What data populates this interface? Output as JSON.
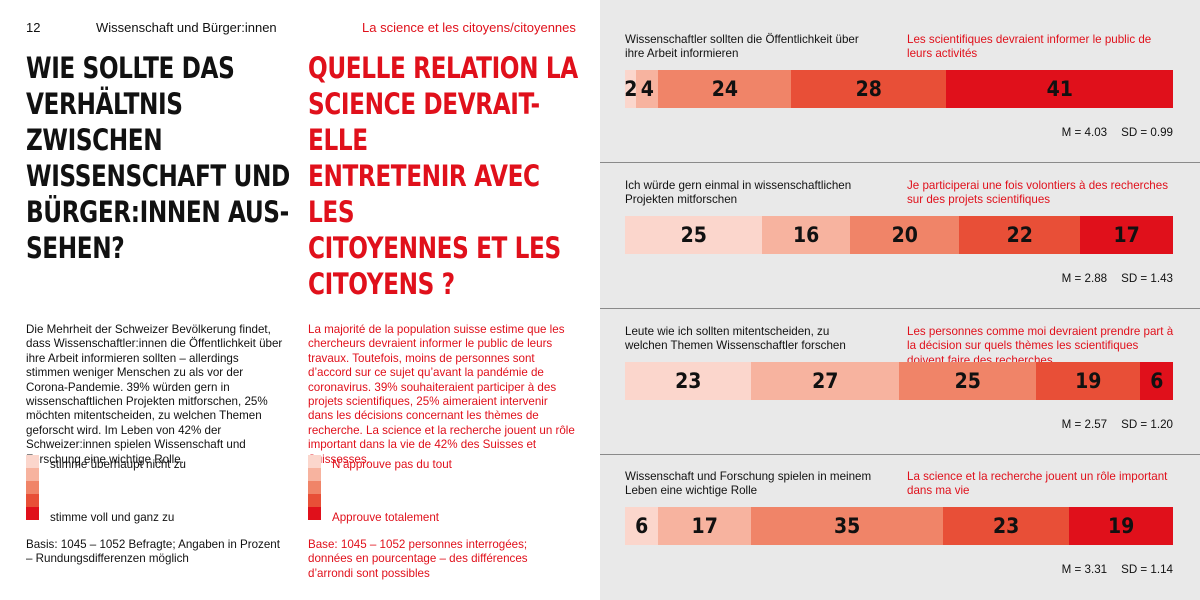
{
  "page_number": "12",
  "running_head_de": "Wissenschaft und Bürger:innen",
  "running_head_fr": "La science et les citoyens/citoyennes",
  "headline_de_lines": [
    "WIE SOLLTE DAS",
    "VERHÄLTNIS ZWISCHEN",
    "WISSENSCHAFT UND",
    "BÜRGER:INNEN AUS-",
    "SEHEN?"
  ],
  "headline_fr_lines": [
    "QUELLE RELATION LA",
    "SCIENCE DEVRAIT-ELLE",
    "ENTRETENIR AVEC LES",
    "CITOYENNES ET LES",
    "CITOYENS ?"
  ],
  "body_de": "Die Mehrheit der Schweizer Bevölkerung findet, dass Wissenschaftler:innen die Öffentlichkeit über ihre Arbeit informieren sollten – allerdings stimmen weniger Menschen zu als vor der Corona-Pandemie. 39% würden gern in wissenschaftlichen Projekten mitforschen, 25% möchten mitentscheiden, zu welchen Themen geforscht wird. Im Leben von 42% der Schweizer:innen spielen Wissenschaft und Forschung eine wichtige Rolle.",
  "body_fr": "La majorité de la population suisse estime que les chercheurs devraient informer le public de leurs travaux. Toutefois, moins de personnes sont d’accord sur ce sujet qu’avant la pandémie de coronavirus. 39% souhaiteraient participer à des projets scientifiques, 25% aimeraient intervenir dans les décisions concernant les thèmes de recherche. La science et la recherche jouent un rôle important dans la vie de 42% des Suisses et Suissesses.",
  "legend_de": {
    "low": "stimme überhaupt nicht zu",
    "high": "stimme voll und ganz zu"
  },
  "legend_fr": {
    "low": "N’approuve pas du tout",
    "high": "Approuve totalement"
  },
  "basis_de": "Basis: 1045 – 1052 Befragte; Angaben in Prozent – Rundungsdifferenzen möglich",
  "basis_fr": "Base: 1045 – 1052 personnes interrogées; données en pourcentage – des différences d’arrondi sont possibles",
  "colors": {
    "scale": [
      "#fbd6cc",
      "#f7b39f",
      "#f08468",
      "#e84f37",
      "#e0101b"
    ],
    "accent_red": "#e0101b",
    "right_background": "#e9e9e9",
    "divider": "#8a8a8a"
  },
  "chart_data": {
    "type": "bar",
    "subtype": "stacked-horizontal-100",
    "scale_labels": [
      "stimme überhaupt nicht zu",
      "",
      "",
      "",
      "stimme voll und ganz zu"
    ],
    "unit": "%",
    "items": [
      {
        "label_de": "Wissenschaftler sollten die Öffentlichkeit über ihre Arbeit informieren",
        "label_fr": "Les scientifiques devraient informer le public de leurs activités",
        "values": [
          2,
          4,
          24,
          28,
          41
        ],
        "mean": "M = 4.03",
        "sd": "SD = 0.99"
      },
      {
        "label_de": "Ich würde gern einmal in wissenschaftlichen Projekten mitforschen",
        "label_fr": "Je participerai une fois volontiers à des recherches sur des projets scientifiques",
        "values": [
          25,
          16,
          20,
          22,
          17
        ],
        "mean": "M = 2.88",
        "sd": "SD = 1.43"
      },
      {
        "label_de": "Leute wie ich sollten mitentscheiden, zu welchen Themen Wissenschaftler forschen",
        "label_fr": "Les personnes comme moi devraient prendre part à la décision sur quels thèmes les scientifiques doivent faire des recherches",
        "values": [
          23,
          27,
          25,
          19,
          6
        ],
        "mean": "M = 2.57",
        "sd": "SD = 1.20"
      },
      {
        "label_de": "Wissenschaft und Forschung spielen in meinem Leben eine wichtige Rolle",
        "label_fr": "La science et la recherche jouent un rôle important dans ma vie",
        "values": [
          6,
          17,
          35,
          23,
          19
        ],
        "mean": "M = 3.31",
        "sd": "SD = 1.14"
      }
    ]
  }
}
